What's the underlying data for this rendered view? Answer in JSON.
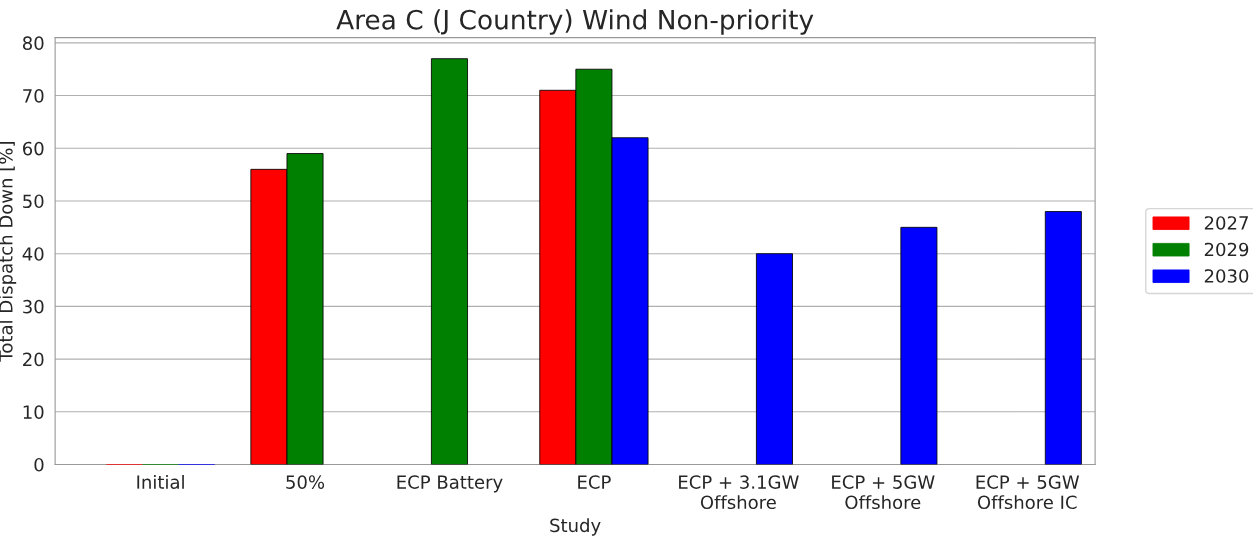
{
  "chart_data": {
    "type": "bar",
    "title": "Area C (J Country) Wind Non-priority",
    "xlabel": "Study",
    "ylabel": "Total Dispatch Down [%]",
    "categories": [
      "Initial",
      "50%",
      "ECP Battery",
      "ECP",
      "ECP + 3.1GW\nOffshore",
      "ECP + 5GW\nOffshore",
      "ECP + 5GW\nOffshore IC"
    ],
    "series": [
      {
        "name": "2027",
        "color": "#ff0000",
        "values": [
          0,
          56,
          null,
          71,
          null,
          null,
          null
        ]
      },
      {
        "name": "2029",
        "color": "#008000",
        "values": [
          0,
          59,
          77,
          75,
          null,
          null,
          null
        ]
      },
      {
        "name": "2030",
        "color": "#0000ff",
        "values": [
          0,
          null,
          null,
          62,
          40,
          45,
          48
        ]
      }
    ],
    "ylim": [
      0,
      81
    ],
    "yticks": [
      0,
      10,
      20,
      30,
      40,
      50,
      60,
      70,
      80
    ],
    "grid": "y",
    "legend": "right"
  }
}
